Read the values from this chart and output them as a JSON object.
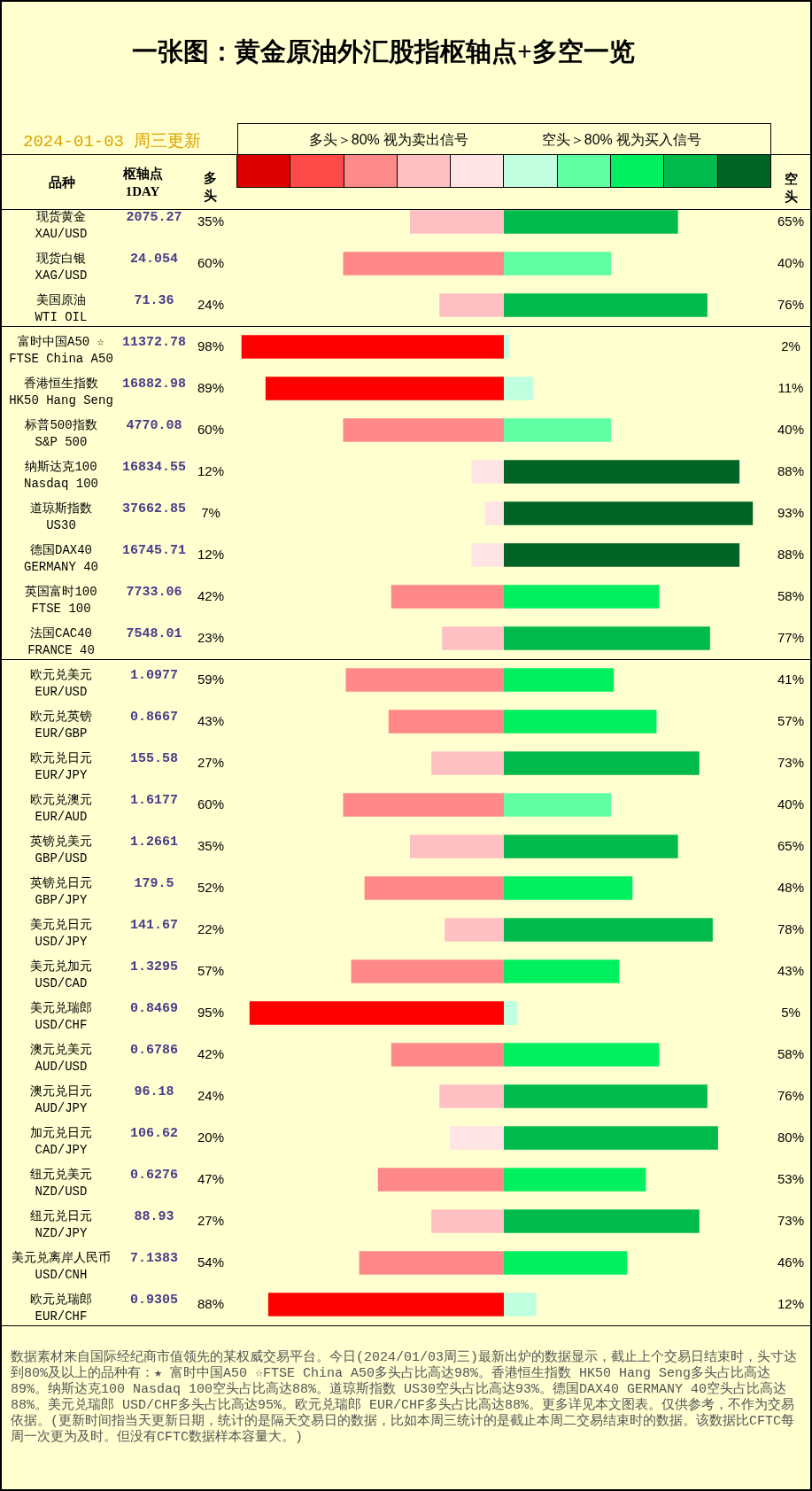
{
  "chart_data": [
    {
      "type": "bar",
      "orientation": "horizontal",
      "title": "一张图：黄金原油外汇股指枢轴点+多空一览",
      "subtitle": "2024-01-03 周三更新",
      "ylabel": "品种",
      "categories": [
        "现货黄金\nXAU/USD",
        "现货白银\nXAG/USD",
        "美国原油\nWTI OIL",
        "富时中国A50 ☆\nFTSE China A50",
        "香港恒生指数\nHK50 Hang Seng",
        "标普500指数\nS&P 500",
        "纳斯达克100\nNasdaq 100",
        "道琼斯指数\nUS30",
        "德国DAX40\nGERMANY 40",
        "英国富时100\nFTSE 100",
        "法国CAC40\nFRANCE 40",
        "欧元兑美元\nEUR/USD",
        "欧元兑英镑\nEUR/GBP",
        "欧元兑日元\nEUR/JPY",
        "欧元兑澳元\nEUR/AUD",
        "英镑兑美元\nGBP/USD",
        "英镑兑日元\nGBP/JPY",
        "美元兑日元\nUSD/JPY",
        "美元兑加元\nUSD/CAD",
        "美元兑瑞郎\nUSD/CHF",
        "澳元兑美元\nAUD/USD",
        "澳元兑日元\nAUD/JPY",
        "加元兑日元\nCAD/JPY",
        "纽元兑美元\nNZD/USD",
        "纽元兑日元\nNZD/JPY",
        "美元兑离岸人民币\nUSD/CNH",
        "欧元兑瑞郎\nEUR/CHF"
      ],
      "series": [
        {
          "name": "多头",
          "values": [
            35,
            60,
            24,
            98,
            89,
            60,
            12,
            7,
            12,
            42,
            23,
            59,
            43,
            27,
            60,
            35,
            52,
            22,
            57,
            95,
            42,
            24,
            20,
            47,
            27,
            54,
            88
          ],
          "value_labels": [
            "35%",
            "60%",
            "24%",
            "98%",
            "89%",
            "60%",
            "12%",
            "7%",
            "12%",
            "42%",
            "23%",
            "59%",
            "43%",
            "27%",
            "60%",
            "35%",
            "52%",
            "22%",
            "57%",
            "95%",
            "42%",
            "24%",
            "20%",
            "47%",
            "27%",
            "54%",
            "88%"
          ],
          "colors": [
            "#ffc0c4",
            "#ff8888",
            "#ffc0c4",
            "#ff0000",
            "#ff0000",
            "#ff8888",
            "#ffe4e6",
            "#ffe4e6",
            "#ffe4e6",
            "#ff8888",
            "#ffc0c4",
            "#ff8888",
            "#ff8888",
            "#ffc0c4",
            "#ff8888",
            "#ffc0c4",
            "#ff8888",
            "#ffc0c4",
            "#ff8888",
            "#ff0000",
            "#ff8888",
            "#ffc0c4",
            "#ffe4e6",
            "#ff8888",
            "#ffc0c4",
            "#ff8888",
            "#ff0000"
          ]
        }
      ],
      "tick_labels": "y",
      "annotations": [
        "多头＞80% 视为卖出信号",
        "枢轴点\n1DAY",
        "数据素材来自国际经纪商市值领先的某权威交易平台。今日(2024/01/03周三)最新出炉的数据显示，截止上个交易日结束时，头寸达到80%及以上的品种有：★ 富时中国A50 ☆FTSE China A50多头占比高达98%。香港恒生指数 HK50 Hang Seng多头占比高达89%。纳斯达克100 Nasdaq 100空头占比高达88%。道琼斯指数 US30空头占比高达93%。德国DAX40 GERMANY 40空头占比高达88%。美元兑瑞郎 USD/CHF多头占比高达95%。欧元兑瑞郎 EUR/CHF多头占比高达88%。更多详见本文图表。仅供参考，不作为交易依据。(更新时间指当天更新日期，统计的是隔天交易日的数据，比如本周三统计的是截止本周二交易结束时的数据。该数据比CFTC每周一次更为及时。但没有CFTC数据样本容量大。)",
        "2075.27",
        "24.054",
        "71.36",
        "11372.78",
        "16882.98",
        "4770.08",
        "16834.55",
        "37662.85",
        "16745.71",
        "7733.06",
        "7548.01",
        "1.0977",
        "0.8667",
        "155.58",
        "1.6177",
        "1.2661",
        "179.5",
        "141.67",
        "1.3295",
        "0.8469",
        "0.6786",
        "96.18",
        "106.62",
        "0.6276",
        "88.93",
        "7.1383",
        "0.9305"
      ]
    },
    {
      "type": "bar",
      "orientation": "horizontal",
      "categories": [
        null,
        null,
        null,
        null,
        null,
        null,
        null,
        null,
        null,
        null,
        null,
        null,
        null,
        null,
        null,
        null,
        null,
        null,
        null,
        null,
        null,
        null,
        null,
        null,
        null,
        null,
        null
      ],
      "series": [
        {
          "name": "空头",
          "values": [
            65,
            40,
            76,
            2,
            11,
            40,
            88,
            93,
            88,
            58,
            77,
            41,
            57,
            73,
            40,
            65,
            48,
            78,
            43,
            5,
            58,
            76,
            80,
            53,
            73,
            46,
            12
          ],
          "value_labels": [
            "65%",
            "40%",
            "76%",
            "2%",
            "11%",
            "40%",
            "88%",
            "93%",
            "88%",
            "58%",
            "77%",
            "41%",
            "57%",
            "73%",
            "40%",
            "65%",
            "48%",
            "78%",
            "43%",
            "5%",
            "58%",
            "76%",
            "80%",
            "53%",
            "73%",
            "46%",
            "12%"
          ],
          "colors": [
            "#00bb4c",
            "#60ffa4",
            "#00bb4c",
            "#c0ffe0",
            "#c0ffe0",
            "#60ffa4",
            "#006426",
            "#006426",
            "#006426",
            "#00f060",
            "#00bb4c",
            "#00f060",
            "#00f060",
            "#00bb4c",
            "#60ffa4",
            "#00bb4c",
            "#00f060",
            "#00bb4c",
            "#00f060",
            "#c0ffe0",
            "#00f060",
            "#00bb4c",
            "#00bb4c",
            "#00f060",
            "#00bb4c",
            "#00f060",
            "#c0ffe0"
          ]
        }
      ],
      "tick_labels": false,
      "annotations": [
        "空头＞80% 视为买入信号"
      ]
    }
  ]
}
